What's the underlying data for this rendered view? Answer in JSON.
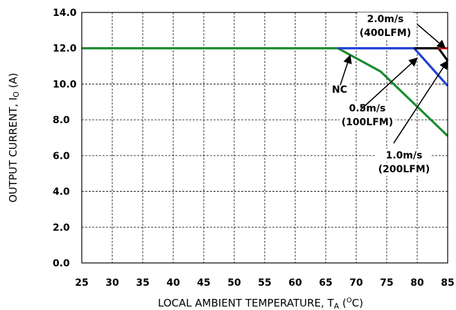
{
  "chart_data": {
    "type": "line",
    "xlabel": "LOCAL AMBIENT TEMPERATURE, T",
    "xlabel_sub": "A",
    "xlabel_tail_open": " (",
    "xlabel_sup": "O",
    "xlabel_tail_close": "C)",
    "ylabel": "OUTPUT CURRENT, I",
    "ylabel_sub": "O",
    "ylabel_tail": " (A)",
    "xlim": [
      25,
      85
    ],
    "ylim": [
      0,
      14
    ],
    "x_ticks": [
      25,
      30,
      35,
      40,
      45,
      50,
      55,
      60,
      65,
      70,
      75,
      80,
      85
    ],
    "y_ticks": [
      0,
      2,
      4,
      6,
      8,
      10,
      12,
      14
    ],
    "x_tick_labels": [
      "25",
      "30",
      "35",
      "40",
      "45",
      "50",
      "55",
      "60",
      "65",
      "70",
      "75",
      "80",
      "85"
    ],
    "y_tick_labels": [
      "0.0",
      "2.0",
      "4.0",
      "6.0",
      "8.0",
      "10.0",
      "12.0",
      "14.0"
    ],
    "grid": true,
    "series": [
      {
        "name": "NC",
        "color": "#1a8a2e",
        "x": [
          25,
          67,
          74,
          85
        ],
        "y": [
          12.0,
          12.0,
          10.7,
          7.1
        ]
      },
      {
        "name": "0.5m/s (100LFM)",
        "color": "#1f3fd6",
        "x": [
          67,
          79.5,
          85
        ],
        "y": [
          12.0,
          12.0,
          9.9
        ]
      },
      {
        "name": "1.0m/s (200LFM)",
        "color": "#000000",
        "x": [
          79.5,
          83.5,
          85
        ],
        "y": [
          12.0,
          12.0,
          11.3
        ]
      },
      {
        "name": "2.0m/s (400LFM)",
        "color": "#e0151b",
        "x": [
          83.5,
          85
        ],
        "y": [
          12.0,
          12.0
        ]
      }
    ],
    "annotations": [
      {
        "id": "nc",
        "lines": [
          "NC"
        ],
        "target": [
          69,
          11.6
        ]
      },
      {
        "id": "s05",
        "lines": [
          "0.5m/s",
          "(100LFM)"
        ],
        "target": [
          80,
          11.45
        ]
      },
      {
        "id": "s10",
        "lines": [
          "1.0m/s",
          "(200LFM)"
        ],
        "target": [
          85,
          11.3
        ]
      },
      {
        "id": "s20",
        "lines": [
          "2.0m/s",
          "(400LFM)"
        ],
        "target": [
          84.6,
          12.0
        ]
      }
    ]
  }
}
